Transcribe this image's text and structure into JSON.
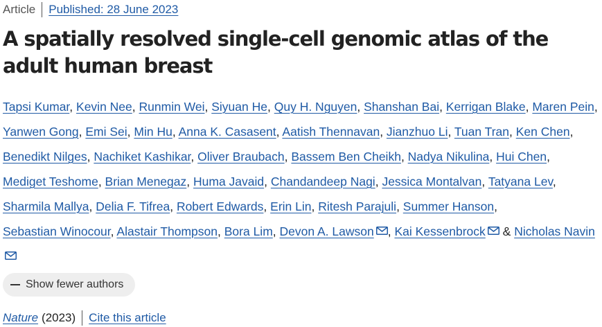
{
  "article": {
    "type": "Article",
    "published_label": "Published: 28 June 2023",
    "title": "A spatially resolved single-cell genomic atlas of the adult human breast"
  },
  "authors": [
    {
      "name": "Tapsi Kumar",
      "sep": ", "
    },
    {
      "name": "Kevin Nee",
      "sep": ", "
    },
    {
      "name": "Runmin Wei",
      "sep": ", "
    },
    {
      "name": "Siyuan He",
      "sep": ", "
    },
    {
      "name": "Quy H. Nguyen",
      "sep": ", "
    },
    {
      "name": "Shanshan Bai",
      "sep": ", "
    },
    {
      "name": "Kerrigan Blake",
      "sep": ", "
    },
    {
      "name": "Maren Pein",
      "sep": ", "
    },
    {
      "name": "Yanwen Gong",
      "sep": ", "
    },
    {
      "name": "Emi Sei",
      "sep": ", "
    },
    {
      "name": "Min Hu",
      "sep": ", "
    },
    {
      "name": "Anna K. Casasent",
      "sep": ", "
    },
    {
      "name": "Aatish Thennavan",
      "sep": ", "
    },
    {
      "name": "Jianzhuo Li",
      "sep": ", "
    },
    {
      "name": "Tuan Tran",
      "sep": ", "
    },
    {
      "name": "Ken Chen",
      "sep": ", "
    },
    {
      "name": "Benedikt Nilges",
      "sep": ", "
    },
    {
      "name": "Nachiket Kashikar",
      "sep": ", "
    },
    {
      "name": "Oliver Braubach",
      "sep": ", "
    },
    {
      "name": "Bassem Ben Cheikh",
      "sep": ", "
    },
    {
      "name": "Nadya Nikulina",
      "sep": ", "
    },
    {
      "name": "Hui Chen",
      "sep": ", "
    },
    {
      "name": "Mediget Teshome",
      "sep": ", "
    },
    {
      "name": "Brian Menegaz",
      "sep": ", "
    },
    {
      "name": "Huma Javaid",
      "sep": ", "
    },
    {
      "name": "Chandandeep Nagi",
      "sep": ", "
    },
    {
      "name": "Jessica Montalvan",
      "sep": ", "
    },
    {
      "name": "Tatyana Lev",
      "sep": ", "
    },
    {
      "name": "Sharmila Mallya",
      "sep": ", "
    },
    {
      "name": "Delia F. Tifrea",
      "sep": ", "
    },
    {
      "name": "Robert Edwards",
      "sep": ", "
    },
    {
      "name": "Erin Lin",
      "sep": ", "
    },
    {
      "name": "Ritesh Parajuli",
      "sep": ", "
    },
    {
      "name": "Summer Hanson",
      "sep": ", "
    },
    {
      "name": "Sebastian Winocour",
      "sep": ", "
    },
    {
      "name": "Alastair Thompson",
      "sep": ", "
    },
    {
      "name": "Bora Lim",
      "sep": ", "
    },
    {
      "name": "Devon A. Lawson",
      "sep": ", ",
      "mail": true
    },
    {
      "name": "Kai Kessenbrock",
      "sep": " & ",
      "mail": true
    },
    {
      "name": "Nicholas Navin",
      "sep": "",
      "mail": true
    }
  ],
  "toggle": {
    "label": "Show fewer authors",
    "icon": "minus-icon"
  },
  "citation": {
    "journal": "Nature",
    "year": "(2023)",
    "cite_label": "Cite this article"
  },
  "colors": {
    "link": "#1f5aa5",
    "text": "#222222",
    "button_bg": "#eeeeee"
  }
}
